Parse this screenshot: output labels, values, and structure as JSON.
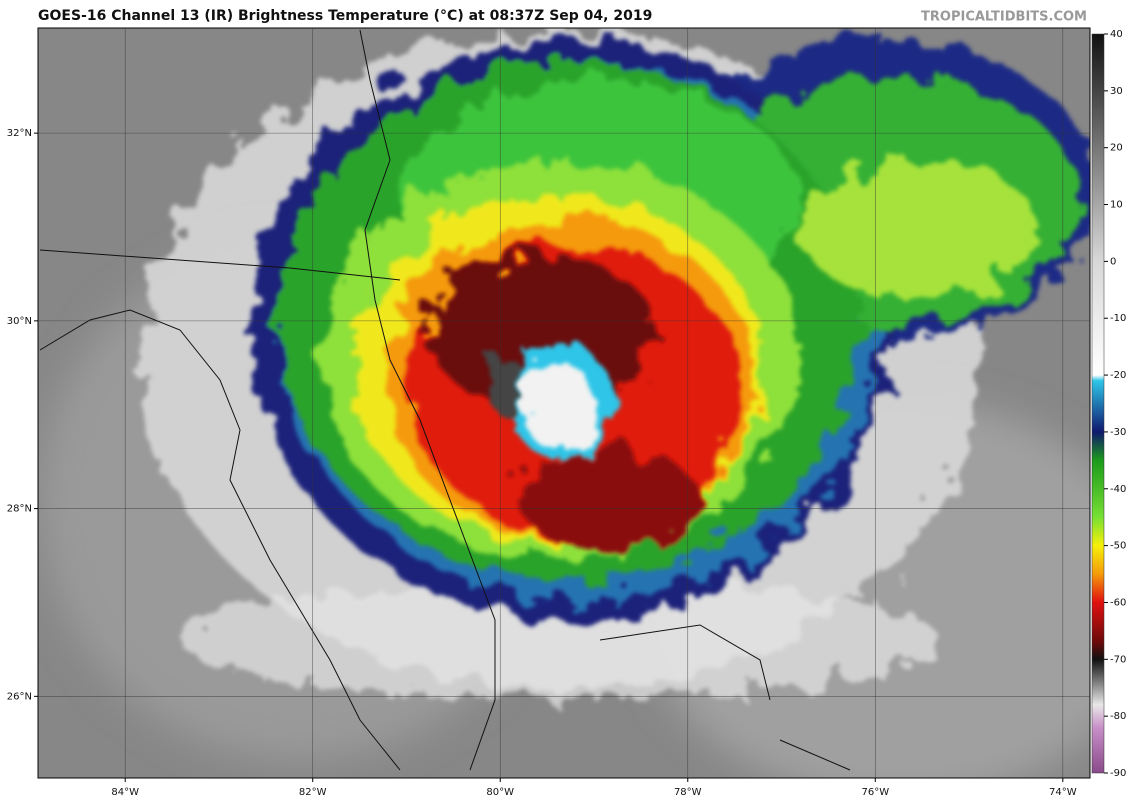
{
  "header": {
    "title": "GOES-16 Channel 13 (IR) Brightness Temperature (°C) at 08:37Z Sep 04, 2019",
    "watermark": "TROPICALTIDBITS.COM"
  },
  "map": {
    "lonlim": [
      -84.93,
      -73.71
    ],
    "latlim": [
      25.13,
      33.12
    ],
    "lonticks": [
      {
        "value": -84,
        "label": "84°W"
      },
      {
        "value": -82,
        "label": "82°W"
      },
      {
        "value": -80,
        "label": "80°W"
      },
      {
        "value": -78,
        "label": "78°W"
      },
      {
        "value": -76,
        "label": "76°W"
      },
      {
        "value": -74,
        "label": "74°W"
      }
    ],
    "latticks": [
      {
        "value": 26,
        "label": "26°N"
      },
      {
        "value": 28,
        "label": "28°N"
      },
      {
        "value": 30,
        "label": "30°N"
      },
      {
        "value": 32,
        "label": "32°N"
      }
    ],
    "grid": true
  },
  "colorbar": {
    "lim": [
      -90,
      40
    ],
    "ticks": [
      40,
      30,
      20,
      10,
      0,
      -10,
      -20,
      -30,
      -40,
      -50,
      -60,
      -70,
      -80,
      -90
    ],
    "colormap": [
      {
        "value": 40,
        "color": "#111111"
      },
      {
        "value": 20,
        "color": "#777777"
      },
      {
        "value": 0,
        "color": "#d8d8d8"
      },
      {
        "value": -20,
        "color": "#ffffff"
      },
      {
        "value": -21,
        "color": "#2ec5e8"
      },
      {
        "value": -30,
        "color": "#10186e"
      },
      {
        "value": -35,
        "color": "#1b9a1b"
      },
      {
        "value": -45,
        "color": "#77e033"
      },
      {
        "value": -50,
        "color": "#f5f00a"
      },
      {
        "value": -55,
        "color": "#f59a0a"
      },
      {
        "value": -60,
        "color": "#e01010"
      },
      {
        "value": -67,
        "color": "#6a0a0a"
      },
      {
        "value": -70,
        "color": "#111111"
      },
      {
        "value": -78,
        "color": "#e8e8e8"
      },
      {
        "value": -82,
        "color": "#c890c8"
      },
      {
        "value": -90,
        "color": "#8a4a8a"
      }
    ]
  }
}
